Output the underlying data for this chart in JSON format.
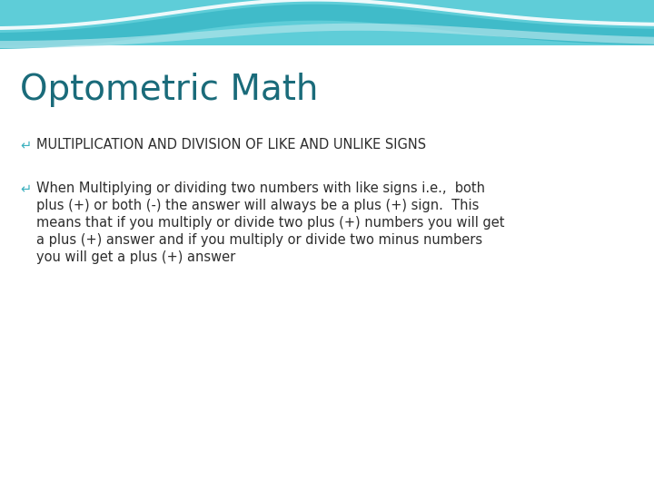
{
  "title": "Optometric Math",
  "title_color": "#1a6b7a",
  "title_fontsize": 28,
  "bullet1": "MULTIPLICATION AND DIVISION OF LIKE AND UNLIKE SIGNS",
  "bullet1_color": "#2d2d2d",
  "bullet1_fontsize": 10.5,
  "bullet2_line1": "When Multiplying or dividing two numbers with like signs i.e.,  both",
  "bullet2_line2": "plus (+) or both (-) the answer will always be a plus (+) sign.  This",
  "bullet2_line3": "means that if you multiply or divide two plus (+) numbers you will get",
  "bullet2_line4": "a plus (+) answer and if you multiply or divide two minus numbers",
  "bullet2_line5": "you will get a plus (+) answer",
  "bullet2_color": "#2d2d2d",
  "bullet2_fontsize": 10.5,
  "bullet_color": "#3ab0be",
  "bg_color": "#ffffff",
  "slide_bg": "#e8f4f6",
  "wave_teal_dark": "#3dbac8",
  "wave_teal_mid": "#5ecdd8",
  "wave_teal_light": "#7fe0e8",
  "wave_white_line": "#e8f8fa",
  "wave_dashed_color": "#4cc4d0"
}
